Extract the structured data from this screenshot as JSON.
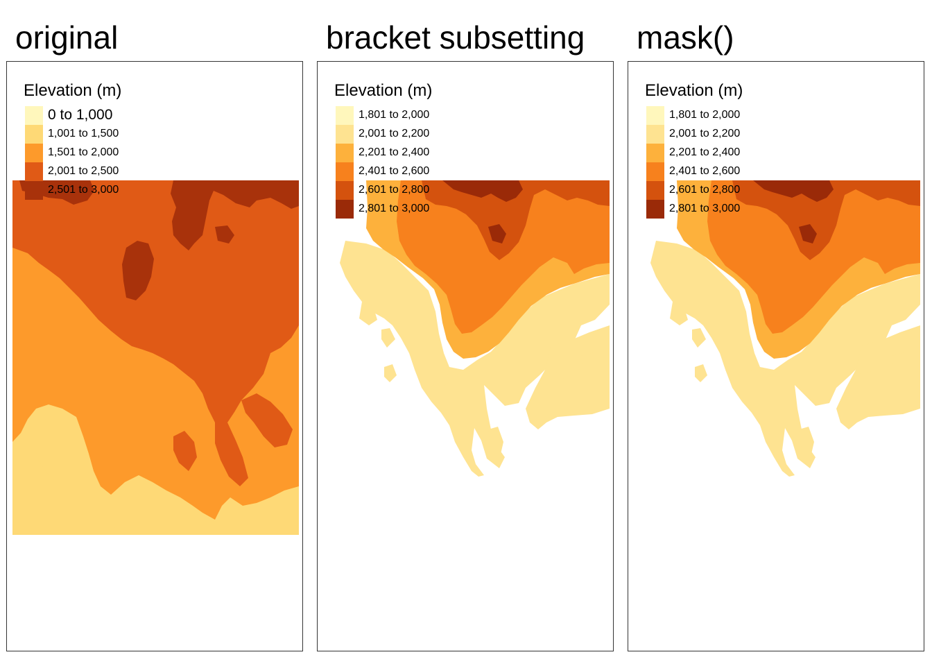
{
  "panels": [
    {
      "title": "original",
      "legend": {
        "title": "Elevation (m)",
        "items": [
          {
            "label": "0 to 1,000",
            "color": "#fff7bc"
          },
          {
            "label": "1,001 to 1,500",
            "color": "#fed976"
          },
          {
            "label": "1,501 to 2,000",
            "color": "#fd9a2b"
          },
          {
            "label": "2,001 to 2,500",
            "color": "#e05a16"
          },
          {
            "label": "2,501 to 3,000",
            "color": "#a8320b"
          }
        ]
      }
    },
    {
      "title": "bracket subsetting",
      "legend": {
        "title": "Elevation (m)",
        "items": [
          {
            "label": "1,801 to 2,000",
            "color": "#fff7bc"
          },
          {
            "label": "2,001 to 2,200",
            "color": "#fee391"
          },
          {
            "label": "2,201 to 2,400",
            "color": "#fdb13c"
          },
          {
            "label": "2,401 to 2,600",
            "color": "#f7811d"
          },
          {
            "label": "2,601 to 2,800",
            "color": "#d4520e"
          },
          {
            "label": "2,801 to 3,000",
            "color": "#9a2a08"
          }
        ]
      }
    },
    {
      "title": "mask()",
      "legend": {
        "title": "Elevation (m)",
        "items": [
          {
            "label": "1,801 to 2,000",
            "color": "#fff7bc"
          },
          {
            "label": "2,001 to 2,200",
            "color": "#fee391"
          },
          {
            "label": "2,201 to 2,400",
            "color": "#fdb13c"
          },
          {
            "label": "2,401 to 2,600",
            "color": "#f7811d"
          },
          {
            "label": "2,601 to 2,800",
            "color": "#d4520e"
          },
          {
            "label": "2,801 to 3,000",
            "color": "#9a2a08"
          }
        ]
      }
    }
  ]
}
